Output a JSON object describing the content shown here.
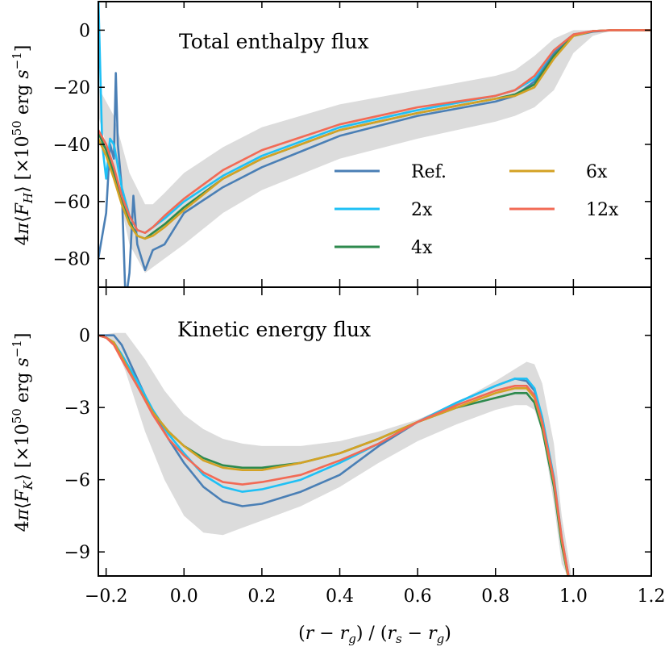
{
  "figure": {
    "xlabel": "(r − r_g) / (r_s − r_g)",
    "x_range": [
      -0.22,
      1.2
    ],
    "x_ticks": [
      -0.2,
      0.0,
      0.2,
      0.4,
      0.6,
      0.8,
      1.0,
      1.2
    ],
    "x_tick_labels": [
      "−0.2",
      "0.0",
      "0.2",
      "0.4",
      "0.6",
      "0.8",
      "1.0",
      "1.2"
    ],
    "band_color": "#dcdcdc"
  },
  "legend": {
    "entries": [
      {
        "label": "Ref.",
        "color": "#4a7fb5"
      },
      {
        "label": "2x",
        "color": "#1ec0f5"
      },
      {
        "label": "4x",
        "color": "#2e8a4e"
      },
      {
        "label": "6x",
        "color": "#d4a224"
      },
      {
        "label": "12x",
        "color": "#f26a55"
      }
    ]
  },
  "chart_data": [
    {
      "type": "line",
      "title": "Total enthalpy flux",
      "ylabel": "4π⟨F_H⟩ [×10^50 erg s^-1]",
      "ylim": [
        -90,
        10
      ],
      "yticks": [
        0,
        -20,
        -40,
        -60,
        -80
      ],
      "ytick_labels": [
        "0",
        "−20",
        "−40",
        "−60",
        "−80"
      ],
      "band": {
        "x": [
          -0.22,
          -0.18,
          -0.14,
          -0.1,
          -0.08,
          -0.05,
          0.0,
          0.1,
          0.2,
          0.4,
          0.6,
          0.8,
          0.85,
          0.9,
          0.95,
          1.0,
          1.05,
          1.1,
          1.2
        ],
        "upper": [
          -20,
          -30,
          -50,
          -61,
          -61,
          -57,
          -50,
          -41,
          -34,
          -26,
          -21,
          -16,
          -14,
          -9,
          -3,
          0,
          0,
          0,
          0
        ],
        "lower": [
          -30,
          -50,
          -75,
          -85,
          -83,
          -80,
          -75,
          -64,
          -56,
          -45,
          -38,
          -32,
          -30,
          -27,
          -21,
          -8,
          -2,
          0,
          0
        ]
      },
      "series": [
        {
          "name": "Ref.",
          "x": [
            -0.22,
            -0.2,
            -0.19,
            -0.18,
            -0.175,
            -0.17,
            -0.16,
            -0.15,
            -0.14,
            -0.13,
            -0.12,
            -0.1,
            -0.08,
            -0.05,
            0.0,
            0.1,
            0.2,
            0.4,
            0.6,
            0.8,
            0.85,
            0.9,
            0.95,
            1.0,
            1.05,
            1.1,
            1.15,
            1.2
          ],
          "values": [
            -80,
            -64,
            -40,
            -45,
            -15,
            -40,
            -55,
            -95,
            -85,
            -58,
            -75,
            -84,
            -77,
            -75,
            -64,
            -55,
            -48,
            -37,
            -30,
            -25,
            -23,
            -18,
            -8,
            -2,
            -0.5,
            0,
            0,
            0
          ]
        },
        {
          "name": "2x",
          "x": [
            -0.22,
            -0.21,
            -0.2,
            -0.19,
            -0.18,
            -0.16,
            -0.14,
            -0.12,
            -0.1,
            -0.08,
            -0.05,
            0.0,
            0.1,
            0.2,
            0.4,
            0.6,
            0.8,
            0.85,
            0.9,
            0.95,
            1.0,
            1.05,
            1.1,
            1.15,
            1.2
          ],
          "values": [
            12,
            -40,
            -52,
            -38,
            -40,
            -55,
            -65,
            -70,
            -71,
            -69,
            -66,
            -60,
            -51,
            -44,
            -34,
            -28,
            -23,
            -21,
            -17,
            -7,
            -1.5,
            -0.3,
            0,
            0,
            0
          ]
        },
        {
          "name": "4x",
          "x": [
            -0.22,
            -0.2,
            -0.18,
            -0.16,
            -0.14,
            -0.12,
            -0.1,
            -0.08,
            -0.05,
            0.0,
            0.1,
            0.2,
            0.4,
            0.6,
            0.8,
            0.85,
            0.9,
            0.95,
            1.0,
            1.05,
            1.1,
            1.15,
            1.2
          ],
          "values": [
            -36,
            -42,
            -50,
            -60,
            -67,
            -72,
            -73,
            -71,
            -68,
            -62,
            -52,
            -45,
            -35,
            -29,
            -24,
            -22.5,
            -19,
            -9,
            -2,
            -0.3,
            0,
            0,
            0
          ]
        },
        {
          "name": "6x",
          "x": [
            -0.22,
            -0.2,
            -0.18,
            -0.16,
            -0.14,
            -0.12,
            -0.1,
            -0.08,
            -0.05,
            0.0,
            0.1,
            0.2,
            0.4,
            0.6,
            0.8,
            0.85,
            0.9,
            0.95,
            1.0,
            1.05,
            1.1,
            1.15,
            1.2
          ],
          "values": [
            -38,
            -44,
            -52,
            -61,
            -68,
            -72,
            -73,
            -72,
            -69,
            -63,
            -52,
            -45,
            -35,
            -29,
            -24,
            -23,
            -20,
            -10,
            -2,
            -0.3,
            0,
            0,
            0
          ]
        },
        {
          "name": "12x",
          "x": [
            -0.22,
            -0.2,
            -0.18,
            -0.16,
            -0.14,
            -0.12,
            -0.1,
            -0.08,
            -0.05,
            0.0,
            0.1,
            0.2,
            0.4,
            0.6,
            0.8,
            0.85,
            0.9,
            0.95,
            1.0,
            1.05,
            1.1,
            1.15,
            1.2
          ],
          "values": [
            -35,
            -40,
            -48,
            -58,
            -65,
            -70,
            -71,
            -69,
            -65,
            -59,
            -49,
            -42,
            -33,
            -27,
            -23,
            -21,
            -16,
            -7,
            -1.5,
            -0.3,
            0,
            0,
            0
          ]
        }
      ]
    },
    {
      "type": "line",
      "title": "Kinetic energy flux",
      "ylabel": "4π⟨F_K⟩ [×10^50 erg s^-1]",
      "ylim": [
        -10,
        2
      ],
      "yticks": [
        0,
        -3,
        -6,
        -9
      ],
      "ytick_labels": [
        "0",
        "−3",
        "−6",
        "−9"
      ],
      "band": {
        "x": [
          -0.22,
          -0.18,
          -0.15,
          -0.1,
          -0.05,
          0.0,
          0.05,
          0.1,
          0.15,
          0.2,
          0.3,
          0.4,
          0.5,
          0.6,
          0.7,
          0.8,
          0.85,
          0.88,
          0.9,
          0.92,
          0.95,
          0.97,
          1.0
        ],
        "upper": [
          0,
          0.1,
          0.1,
          -1.0,
          -2.3,
          -3.3,
          -3.9,
          -4.3,
          -4.5,
          -4.6,
          -4.6,
          -4.4,
          -4.0,
          -3.5,
          -2.8,
          -1.9,
          -1.4,
          -1.1,
          -1.2,
          -2.0,
          -4.5,
          -7.5,
          -10.5
        ],
        "lower": [
          0,
          -0.3,
          -1.5,
          -4.0,
          -6.0,
          -7.5,
          -8.2,
          -8.3,
          -8.0,
          -7.7,
          -7.1,
          -6.3,
          -5.3,
          -4.4,
          -3.7,
          -3.1,
          -2.9,
          -2.9,
          -3.1,
          -4.0,
          -7.0,
          -9.5,
          -10.5
        ]
      },
      "series": [
        {
          "name": "Ref.",
          "x": [
            -0.22,
            -0.2,
            -0.18,
            -0.16,
            -0.12,
            -0.08,
            -0.04,
            0.0,
            0.05,
            0.1,
            0.15,
            0.2,
            0.3,
            0.4,
            0.5,
            0.6,
            0.7,
            0.8,
            0.85,
            0.88,
            0.9,
            0.92,
            0.95,
            0.97,
            0.99
          ],
          "values": [
            0,
            0,
            0,
            -0.4,
            -1.8,
            -3.2,
            -4.3,
            -5.3,
            -6.3,
            -6.9,
            -7.1,
            -7.0,
            -6.5,
            -5.8,
            -4.6,
            -3.6,
            -2.8,
            -2.1,
            -1.8,
            -1.9,
            -2.3,
            -3.5,
            -6.0,
            -8.5,
            -10.2
          ]
        },
        {
          "name": "2x",
          "x": [
            -0.22,
            -0.2,
            -0.18,
            -0.16,
            -0.12,
            -0.08,
            -0.04,
            0.0,
            0.05,
            0.1,
            0.15,
            0.2,
            0.3,
            0.4,
            0.5,
            0.6,
            0.7,
            0.8,
            0.85,
            0.88,
            0.9,
            0.92,
            0.95,
            0.97,
            0.99
          ],
          "values": [
            0,
            -0.1,
            -0.3,
            -0.8,
            -1.9,
            -3.1,
            -4.1,
            -4.9,
            -5.8,
            -6.3,
            -6.5,
            -6.4,
            -6.0,
            -5.3,
            -4.5,
            -3.6,
            -2.8,
            -2.1,
            -1.8,
            -1.8,
            -2.2,
            -3.4,
            -5.9,
            -8.4,
            -10.2
          ]
        },
        {
          "name": "4x",
          "x": [
            -0.22,
            -0.2,
            -0.18,
            -0.16,
            -0.12,
            -0.08,
            -0.04,
            0.0,
            0.05,
            0.1,
            0.15,
            0.2,
            0.3,
            0.4,
            0.5,
            0.6,
            0.7,
            0.8,
            0.85,
            0.88,
            0.9,
            0.92,
            0.95,
            0.97,
            0.99
          ],
          "values": [
            0,
            -0.1,
            -0.3,
            -0.9,
            -2.1,
            -3.2,
            -4.0,
            -4.6,
            -5.1,
            -5.4,
            -5.5,
            -5.5,
            -5.3,
            -4.9,
            -4.3,
            -3.6,
            -3.0,
            -2.6,
            -2.4,
            -2.4,
            -2.8,
            -3.9,
            -6.3,
            -8.7,
            -10.3
          ]
        },
        {
          "name": "6x",
          "x": [
            -0.22,
            -0.2,
            -0.18,
            -0.16,
            -0.12,
            -0.08,
            -0.04,
            0.0,
            0.05,
            0.1,
            0.15,
            0.2,
            0.3,
            0.4,
            0.5,
            0.6,
            0.7,
            0.8,
            0.85,
            0.88,
            0.9,
            0.92,
            0.95,
            0.97,
            0.99
          ],
          "values": [
            0,
            -0.1,
            -0.3,
            -0.9,
            -2.1,
            -3.2,
            -4.0,
            -4.6,
            -5.2,
            -5.5,
            -5.6,
            -5.6,
            -5.3,
            -4.9,
            -4.3,
            -3.6,
            -3.0,
            -2.4,
            -2.2,
            -2.2,
            -2.6,
            -3.7,
            -6.1,
            -8.5,
            -10.3
          ]
        },
        {
          "name": "12x",
          "x": [
            -0.22,
            -0.2,
            -0.18,
            -0.16,
            -0.12,
            -0.08,
            -0.04,
            0.0,
            0.05,
            0.1,
            0.15,
            0.2,
            0.3,
            0.4,
            0.5,
            0.6,
            0.7,
            0.8,
            0.85,
            0.88,
            0.9,
            0.92,
            0.95,
            0.97,
            0.99
          ],
          "values": [
            0,
            -0.1,
            -0.4,
            -1.0,
            -2.1,
            -3.3,
            -4.3,
            -5.0,
            -5.7,
            -6.1,
            -6.2,
            -6.1,
            -5.8,
            -5.2,
            -4.5,
            -3.6,
            -2.9,
            -2.3,
            -2.1,
            -2.1,
            -2.5,
            -3.6,
            -6.0,
            -8.4,
            -10.2
          ]
        }
      ]
    }
  ]
}
